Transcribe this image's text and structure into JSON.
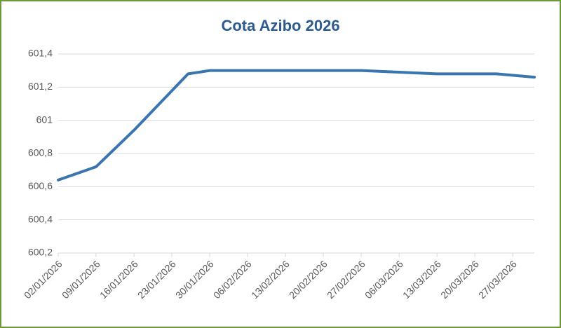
{
  "chart_data": {
    "type": "line",
    "title": "Cota Azibo 2026",
    "x": [
      "02/01/2026",
      "09/01/2026",
      "16/01/2026",
      "26/01/2026",
      "30/01/2026",
      "06/02/2026",
      "13/02/2026",
      "20/02/2026",
      "27/02/2026",
      "06/03/2026",
      "13/03/2026",
      "20/03/2026",
      "24/03/2026",
      "31/03/2026"
    ],
    "series": [
      {
        "name": "Cota Azibo 2026",
        "color": "#3a75b0",
        "values": [
          600.64,
          600.72,
          600.94,
          601.28,
          601.3,
          601.3,
          601.3,
          601.3,
          601.3,
          601.29,
          601.28,
          601.28,
          601.28,
          601.26
        ]
      }
    ],
    "xlim": [
      "02/01/2026",
      "31/03/2026"
    ],
    "xticks": [
      "02/01/2026",
      "09/01/2026",
      "16/01/2026",
      "23/01/2026",
      "30/01/2026",
      "06/02/2026",
      "13/02/2026",
      "20/02/2026",
      "27/02/2026",
      "06/03/2026",
      "13/03/2026",
      "20/03/2026",
      "27/03/2026"
    ],
    "ylim": [
      600.2,
      601.4
    ],
    "yticks": [
      {
        "value": 600.2,
        "label": "600,2"
      },
      {
        "value": 600.4,
        "label": "600,4"
      },
      {
        "value": 600.6,
        "label": "600,6"
      },
      {
        "value": 600.8,
        "label": "600,8"
      },
      601,
      {
        "value": 601.2,
        "label": "601,2"
      },
      {
        "value": 601.4,
        "label": "601,4"
      }
    ],
    "grid": true
  }
}
